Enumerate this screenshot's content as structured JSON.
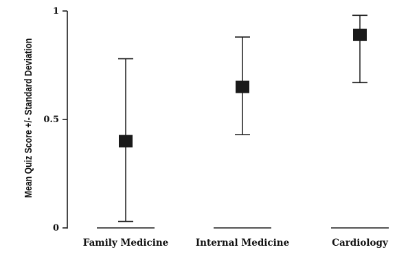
{
  "chart_data": {
    "type": "scatter",
    "title": "",
    "xlabel": "",
    "ylabel": "Mean Quiz Score +/- Standard Deviation",
    "ylim": [
      0,
      1
    ],
    "yticks": [
      "0",
      "0.5",
      "1"
    ],
    "categories": [
      "Family Medicine",
      "Internal Medicine",
      "Cardiology"
    ],
    "series": [
      {
        "means": [
          0.4,
          0.65,
          0.89
        ],
        "lower": [
          0.03,
          0.43,
          0.67
        ],
        "upper": [
          0.78,
          0.88,
          0.98
        ]
      }
    ],
    "colors": {
      "marker": "#1a1a1a",
      "axis": "#1a1a1a"
    },
    "grid": false
  }
}
